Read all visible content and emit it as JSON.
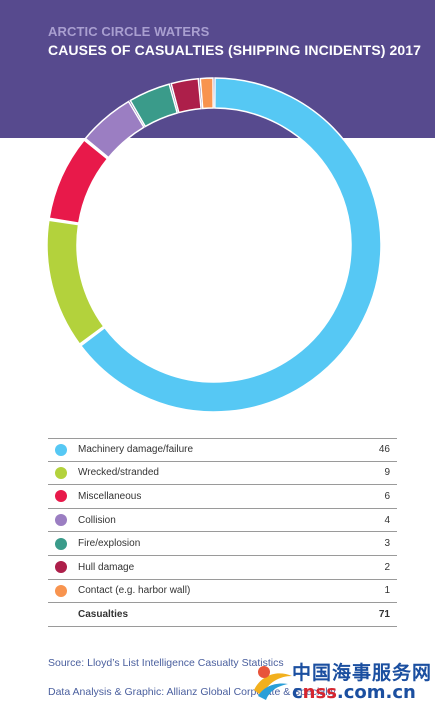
{
  "header": {
    "kicker": "ARCTIC CIRCLE WATERS",
    "title": "CAUSES OF CASUALTIES (SHIPPING INCIDENTS) 2017"
  },
  "chart_data": {
    "type": "pie",
    "style": "donut",
    "title": "CAUSES OF CASUALTIES (SHIPPING INCIDENTS) 2017",
    "categories": [
      "Machinery damage/failure",
      "Wrecked/stranded",
      "Miscellaneous",
      "Collision",
      "Fire/explosion",
      "Hull damage",
      "Contact (e.g. harbor wall)"
    ],
    "values": [
      46,
      9,
      6,
      4,
      3,
      2,
      1
    ],
    "colors": [
      "#56c8f4",
      "#b3d23c",
      "#e8194a",
      "#9b7ec2",
      "#3a9b8a",
      "#ad1f4a",
      "#f8944f"
    ],
    "total_label": "Casualties",
    "total": 71
  },
  "legend": {
    "rows": [
      {
        "label": "Machinery damage/failure",
        "value": "46",
        "color": "#56c8f4"
      },
      {
        "label": "Wrecked/stranded",
        "value": "9",
        "color": "#b3d23c"
      },
      {
        "label": "Miscellaneous",
        "value": "6",
        "color": "#e8194a"
      },
      {
        "label": "Collision",
        "value": "4",
        "color": "#9b7ec2"
      },
      {
        "label": "Fire/explosion",
        "value": "3",
        "color": "#3a9b8a"
      },
      {
        "label": "Hull damage",
        "value": "2",
        "color": "#ad1f4a"
      },
      {
        "label": "Contact (e.g. harbor wall)",
        "value": "1",
        "color": "#f8944f"
      }
    ],
    "total": {
      "label": "Casualties",
      "value": "71"
    }
  },
  "footer": {
    "source": "Source: Lloyd’s List Intelligence Casualty Statistics",
    "credit": "Data Analysis & Graphic: Allianz Global Corporate & Specialty"
  },
  "watermark": {
    "cn_text": "中国海事服务网",
    "url_prefix": "c",
    "url_mid": "nss",
    "url_suffix": ".com.cn"
  }
}
